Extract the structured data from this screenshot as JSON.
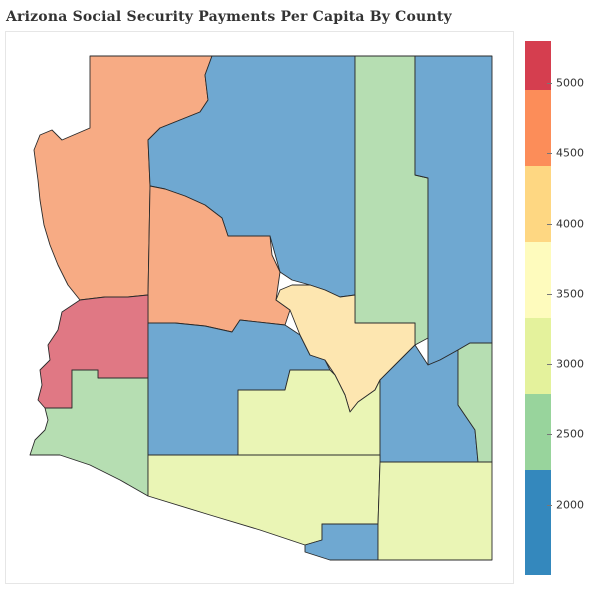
{
  "title": "Arizona Social Security Payments Per Capita By County",
  "colors": {
    "blue": "#6fa8d1",
    "green": "#b6deb2",
    "light_yellow_green": "#eaf5b5",
    "pale_yellow": "#fde6b0",
    "salmon": "#f7ab84",
    "red": "#e07884"
  },
  "legend": {
    "min": 1500,
    "max": 5300,
    "ticks": [
      "2000",
      "2500",
      "3000",
      "3500",
      "4000",
      "4500",
      "5000"
    ],
    "bins": [
      {
        "from": 1500,
        "to": 2250,
        "color": "#3488bd"
      },
      {
        "from": 2250,
        "to": 2790,
        "color": "#98d49c"
      },
      {
        "from": 2790,
        "to": 3330,
        "color": "#e4f29c"
      },
      {
        "from": 3330,
        "to": 3870,
        "color": "#fefbbd"
      },
      {
        "from": 3870,
        "to": 4410,
        "color": "#fed782"
      },
      {
        "from": 4410,
        "to": 4950,
        "color": "#fc8d59"
      },
      {
        "from": 4950,
        "to": 5300,
        "color": "#d53e4f"
      }
    ]
  }
}
